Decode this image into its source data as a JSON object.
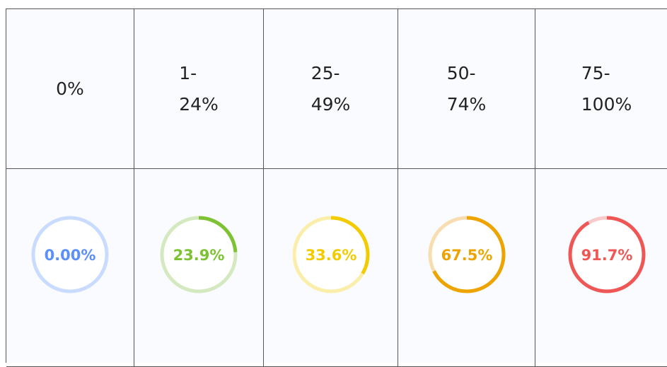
{
  "table": {
    "headers": [
      "0%",
      "1-24%",
      "25-49%",
      "50-74%",
      "75-100%"
    ],
    "cells": [
      {
        "label": "0.00%",
        "value": 0,
        "color": "#5b8ff9",
        "track": "#c9dcff"
      },
      {
        "label": "23.9%",
        "value": 23.9,
        "color": "#7cc233",
        "track": "#d4e9bf"
      },
      {
        "label": "33.6%",
        "value": 33.6,
        "color": "#f2cc00",
        "track": "#fbeeaa"
      },
      {
        "label": "67.5%",
        "value": 67.5,
        "color": "#eea400",
        "track": "#f8ddb0"
      },
      {
        "label": "91.7%",
        "value": 91.7,
        "color": "#ef5757",
        "track": "#f9caca"
      }
    ]
  }
}
